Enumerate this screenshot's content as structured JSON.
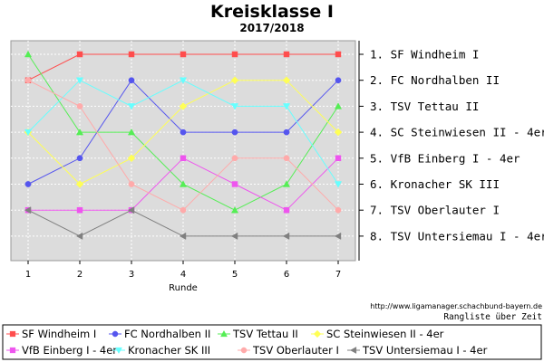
{
  "chart_data": {
    "type": "line",
    "title": "Kreisklasse I",
    "subtitle": "2017/2018",
    "xlabel": "Runde",
    "x": [
      1,
      2,
      3,
      4,
      5,
      6,
      7
    ],
    "ylim": [
      1,
      8
    ],
    "y_inverted": true,
    "grid": true,
    "legend_position": "bottom",
    "rank_labels": [
      "1. SF Windheim I",
      "2. FC Nordhalben II",
      "3. TSV Tettau II",
      "4. SC Steinwiesen II - 4er",
      "5. VfB Einberg I - 4er",
      "6. Kronacher SK III",
      "7. TSV Oberlauter I",
      "8. TSV Untersiemau I - 4er"
    ],
    "series": [
      {
        "name": "SF Windheim I",
        "color": "#ff4d4d",
        "marker": "square",
        "values": [
          2,
          1,
          1,
          1,
          1,
          1,
          1
        ]
      },
      {
        "name": "FC Nordhalben II",
        "color": "#5555ee",
        "marker": "circle",
        "values": [
          6,
          5,
          2,
          4,
          4,
          4,
          2
        ]
      },
      {
        "name": "TSV Tettau II",
        "color": "#55ee55",
        "marker": "triangle-up",
        "values": [
          1,
          4,
          4,
          6,
          7,
          6,
          3
        ]
      },
      {
        "name": "SC Steinwiesen II - 4er",
        "color": "#ffff55",
        "marker": "diamond",
        "values": [
          4,
          6,
          5,
          3,
          2,
          2,
          4
        ]
      },
      {
        "name": "VfB Einberg I - 4er",
        "color": "#ee55ee",
        "marker": "square",
        "values": [
          7,
          7,
          7,
          5,
          6,
          7,
          5
        ]
      },
      {
        "name": "Kronacher SK III",
        "color": "#66ffff",
        "marker": "triangle-down",
        "values": [
          4,
          2,
          3,
          2,
          3,
          3,
          6
        ]
      },
      {
        "name": "TSV Oberlauter I",
        "color": "#ffaaaa",
        "marker": "circle",
        "values": [
          2,
          3,
          6,
          7,
          5,
          5,
          7
        ]
      },
      {
        "name": "TSV Untersiemau I - 4er",
        "color": "#808080",
        "marker": "triangle-left",
        "values": [
          7,
          8,
          7,
          8,
          8,
          8,
          8
        ]
      }
    ],
    "source": "http://www.ligamanager.schachbund-bayern.de",
    "note": "Rangliste über Zeit"
  }
}
